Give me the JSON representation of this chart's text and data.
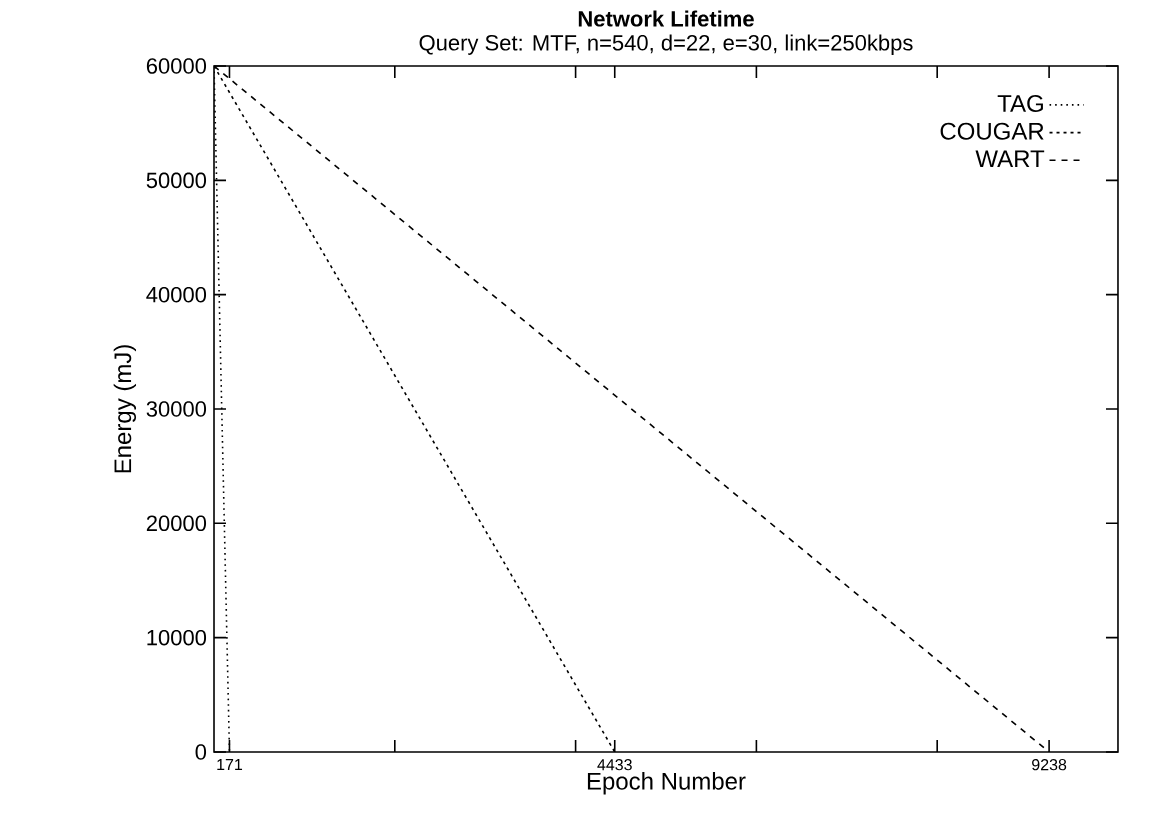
{
  "chart_data": {
    "type": "line",
    "title": "Network Lifetime",
    "subtitle": "Query Set: MTF, n=540, d=22, e=30, link=250kbps",
    "xlabel": "Epoch Number",
    "ylabel": "Energy (mJ)",
    "xlim": [
      0,
      10000
    ],
    "ylim": [
      0,
      60000
    ],
    "xticks": [
      171,
      {
        "value": 2000,
        "label": null
      },
      4433,
      {
        "value": 4000,
        "label": null
      },
      {
        "value": 6000,
        "label": null
      },
      {
        "value": 8000,
        "label": null
      },
      9238
    ],
    "yticks": [
      0,
      10000,
      20000,
      30000,
      40000,
      50000,
      60000
    ],
    "grid": false,
    "legend": "top right",
    "marker": "none",
    "series": [
      {
        "name": "TAG",
        "color": "#000000",
        "line_style": "dotted",
        "x": [
          0,
          171
        ],
        "values": [
          60000,
          0
        ]
      },
      {
        "name": "COUGAR",
        "color": "#000000",
        "line_style": "dotted",
        "x": [
          0,
          4433
        ],
        "values": [
          60000,
          0
        ]
      },
      {
        "name": "WART",
        "color": "#000000",
        "line_style": "dashed",
        "x": [
          0,
          9238
        ],
        "values": [
          60000,
          0
        ]
      }
    ]
  }
}
